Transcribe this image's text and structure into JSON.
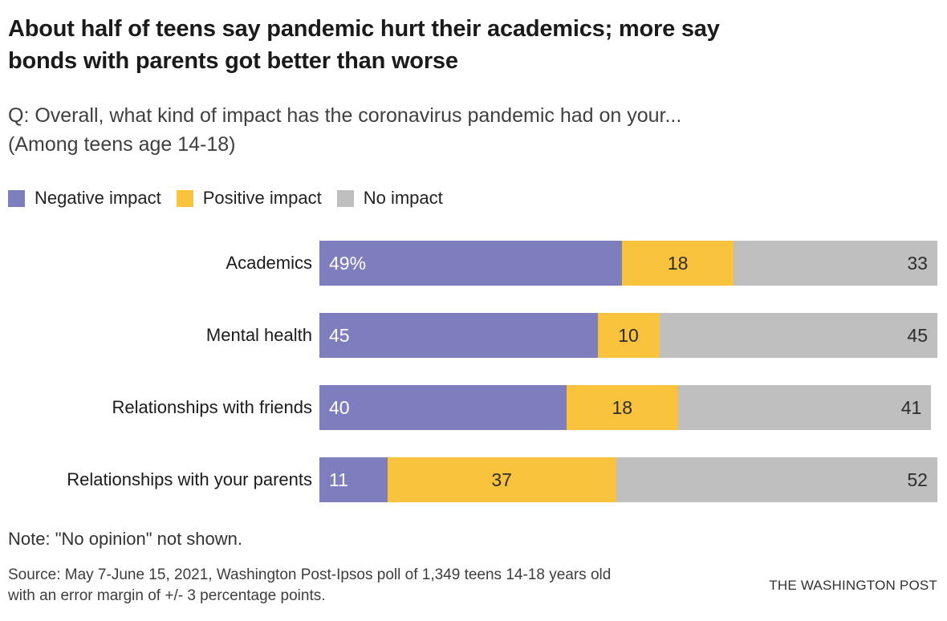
{
  "header": {
    "title": "About half of teens say pandemic hurt their academics; more say\nbonds with parents got better than worse",
    "question": "Q: Overall, what kind of impact has the coronavirus pandemic had on your...\n(Among teens age 14-18)"
  },
  "colors": {
    "negative": "#7e7ebe",
    "positive": "#f9c33d",
    "no_impact": "#bfbfbf"
  },
  "chart_data": {
    "type": "bar",
    "stacked": true,
    "orientation": "horizontal",
    "title": "About half of teens say pandemic hurt their academics; more say bonds with parents got better than worse",
    "categories": [
      "Academics",
      "Mental health",
      "Relationships with friends",
      "Relationships with your parents"
    ],
    "series": [
      {
        "name": "Negative impact",
        "color": "#7e7ebe",
        "values": [
          49,
          45,
          40,
          11
        ],
        "labels": [
          "49%",
          "45",
          "40",
          "11"
        ]
      },
      {
        "name": "Positive impact",
        "color": "#f9c33d",
        "values": [
          18,
          10,
          18,
          37
        ],
        "labels": [
          "18",
          "10",
          "18",
          "37"
        ]
      },
      {
        "name": "No impact",
        "color": "#bfbfbf",
        "values": [
          33,
          45,
          41,
          52
        ],
        "labels": [
          "33",
          "45",
          "41",
          "52"
        ]
      }
    ],
    "xlim": [
      0,
      100
    ],
    "legend_position": "top",
    "grid": false,
    "value_labels_shown": true
  },
  "footer": {
    "note": "Note: \"No opinion\" not shown.",
    "source": "Source: May 7-June 15, 2021, Washington Post-Ipsos poll of 1,349 teens 14-18 years old\nwith an error margin of +/- 3 percentage points.",
    "wordmark": "THE WASHINGTON POST"
  }
}
